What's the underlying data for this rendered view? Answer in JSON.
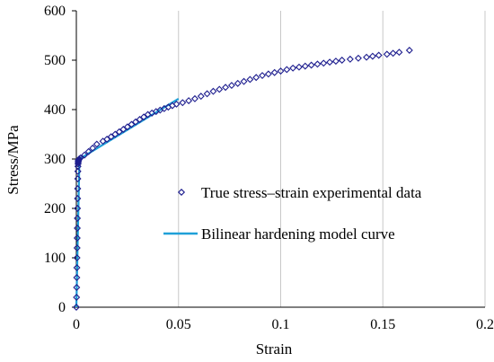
{
  "chart_data": {
    "type": "scatter",
    "xlabel": "Strain",
    "ylabel": "Stress/MPa",
    "xlim": [
      0,
      0.2
    ],
    "ylim": [
      0,
      600
    ],
    "xticks": [
      0,
      0.05,
      0.1,
      0.15,
      0.2
    ],
    "yticks": [
      0,
      100,
      200,
      300,
      400,
      500,
      600
    ],
    "xtick_labels": [
      "0",
      "0.05",
      "0.1",
      "0.15",
      "0.2"
    ],
    "ytick_labels": [
      "0",
      "100",
      "200",
      "300",
      "400",
      "500",
      "600"
    ],
    "grid": "vertical",
    "legend_position": "center-right",
    "series": [
      {
        "name": "True stress–strain experimental data",
        "kind": "scatter",
        "marker": "diamond",
        "color": "#1f1f8f",
        "x": [
          0.0,
          0.0001,
          0.00015,
          0.0002,
          0.00025,
          0.0003,
          0.00035,
          0.0004,
          0.00045,
          0.0005,
          0.00055,
          0.0006,
          0.00065,
          0.0007,
          0.00075,
          0.0008,
          0.00085,
          0.0009,
          0.00095,
          0.001,
          0.0011,
          0.0012,
          0.0014,
          0.002,
          0.004,
          0.006,
          0.008,
          0.01,
          0.013,
          0.015,
          0.017,
          0.019,
          0.021,
          0.023,
          0.025,
          0.027,
          0.029,
          0.031,
          0.033,
          0.035,
          0.037,
          0.039,
          0.041,
          0.043,
          0.045,
          0.047,
          0.049,
          0.052,
          0.055,
          0.058,
          0.061,
          0.064,
          0.067,
          0.07,
          0.073,
          0.076,
          0.079,
          0.082,
          0.085,
          0.088,
          0.091,
          0.094,
          0.097,
          0.1,
          0.103,
          0.106,
          0.109,
          0.112,
          0.115,
          0.118,
          0.121,
          0.124,
          0.127,
          0.13,
          0.134,
          0.138,
          0.142,
          0.145,
          0.148,
          0.152,
          0.155,
          0.158,
          0.163
        ],
        "y": [
          0,
          20,
          40,
          60,
          80,
          100,
          120,
          140,
          160,
          180,
          200,
          220,
          240,
          260,
          275,
          285,
          290,
          293,
          295,
          297,
          298,
          299,
          300,
          302,
          308,
          315,
          322,
          330,
          336,
          340,
          345,
          350,
          355,
          360,
          365,
          370,
          375,
          380,
          385,
          390,
          393,
          396,
          399,
          402,
          405,
          408,
          411,
          414,
          418,
          422,
          427,
          432,
          437,
          441,
          445,
          449,
          453,
          457,
          461,
          465,
          469,
          472,
          475,
          478,
          481,
          484,
          486,
          488,
          490,
          492,
          494,
          496,
          498,
          500,
          502,
          504,
          506,
          508,
          510,
          512,
          514,
          516,
          520
        ]
      },
      {
        "name": "Bilinear hardening model curve",
        "kind": "line",
        "color": "#1fa0d8",
        "x": [
          0,
          0.0015,
          0.05
        ],
        "y": [
          0,
          300,
          422
        ]
      }
    ]
  }
}
